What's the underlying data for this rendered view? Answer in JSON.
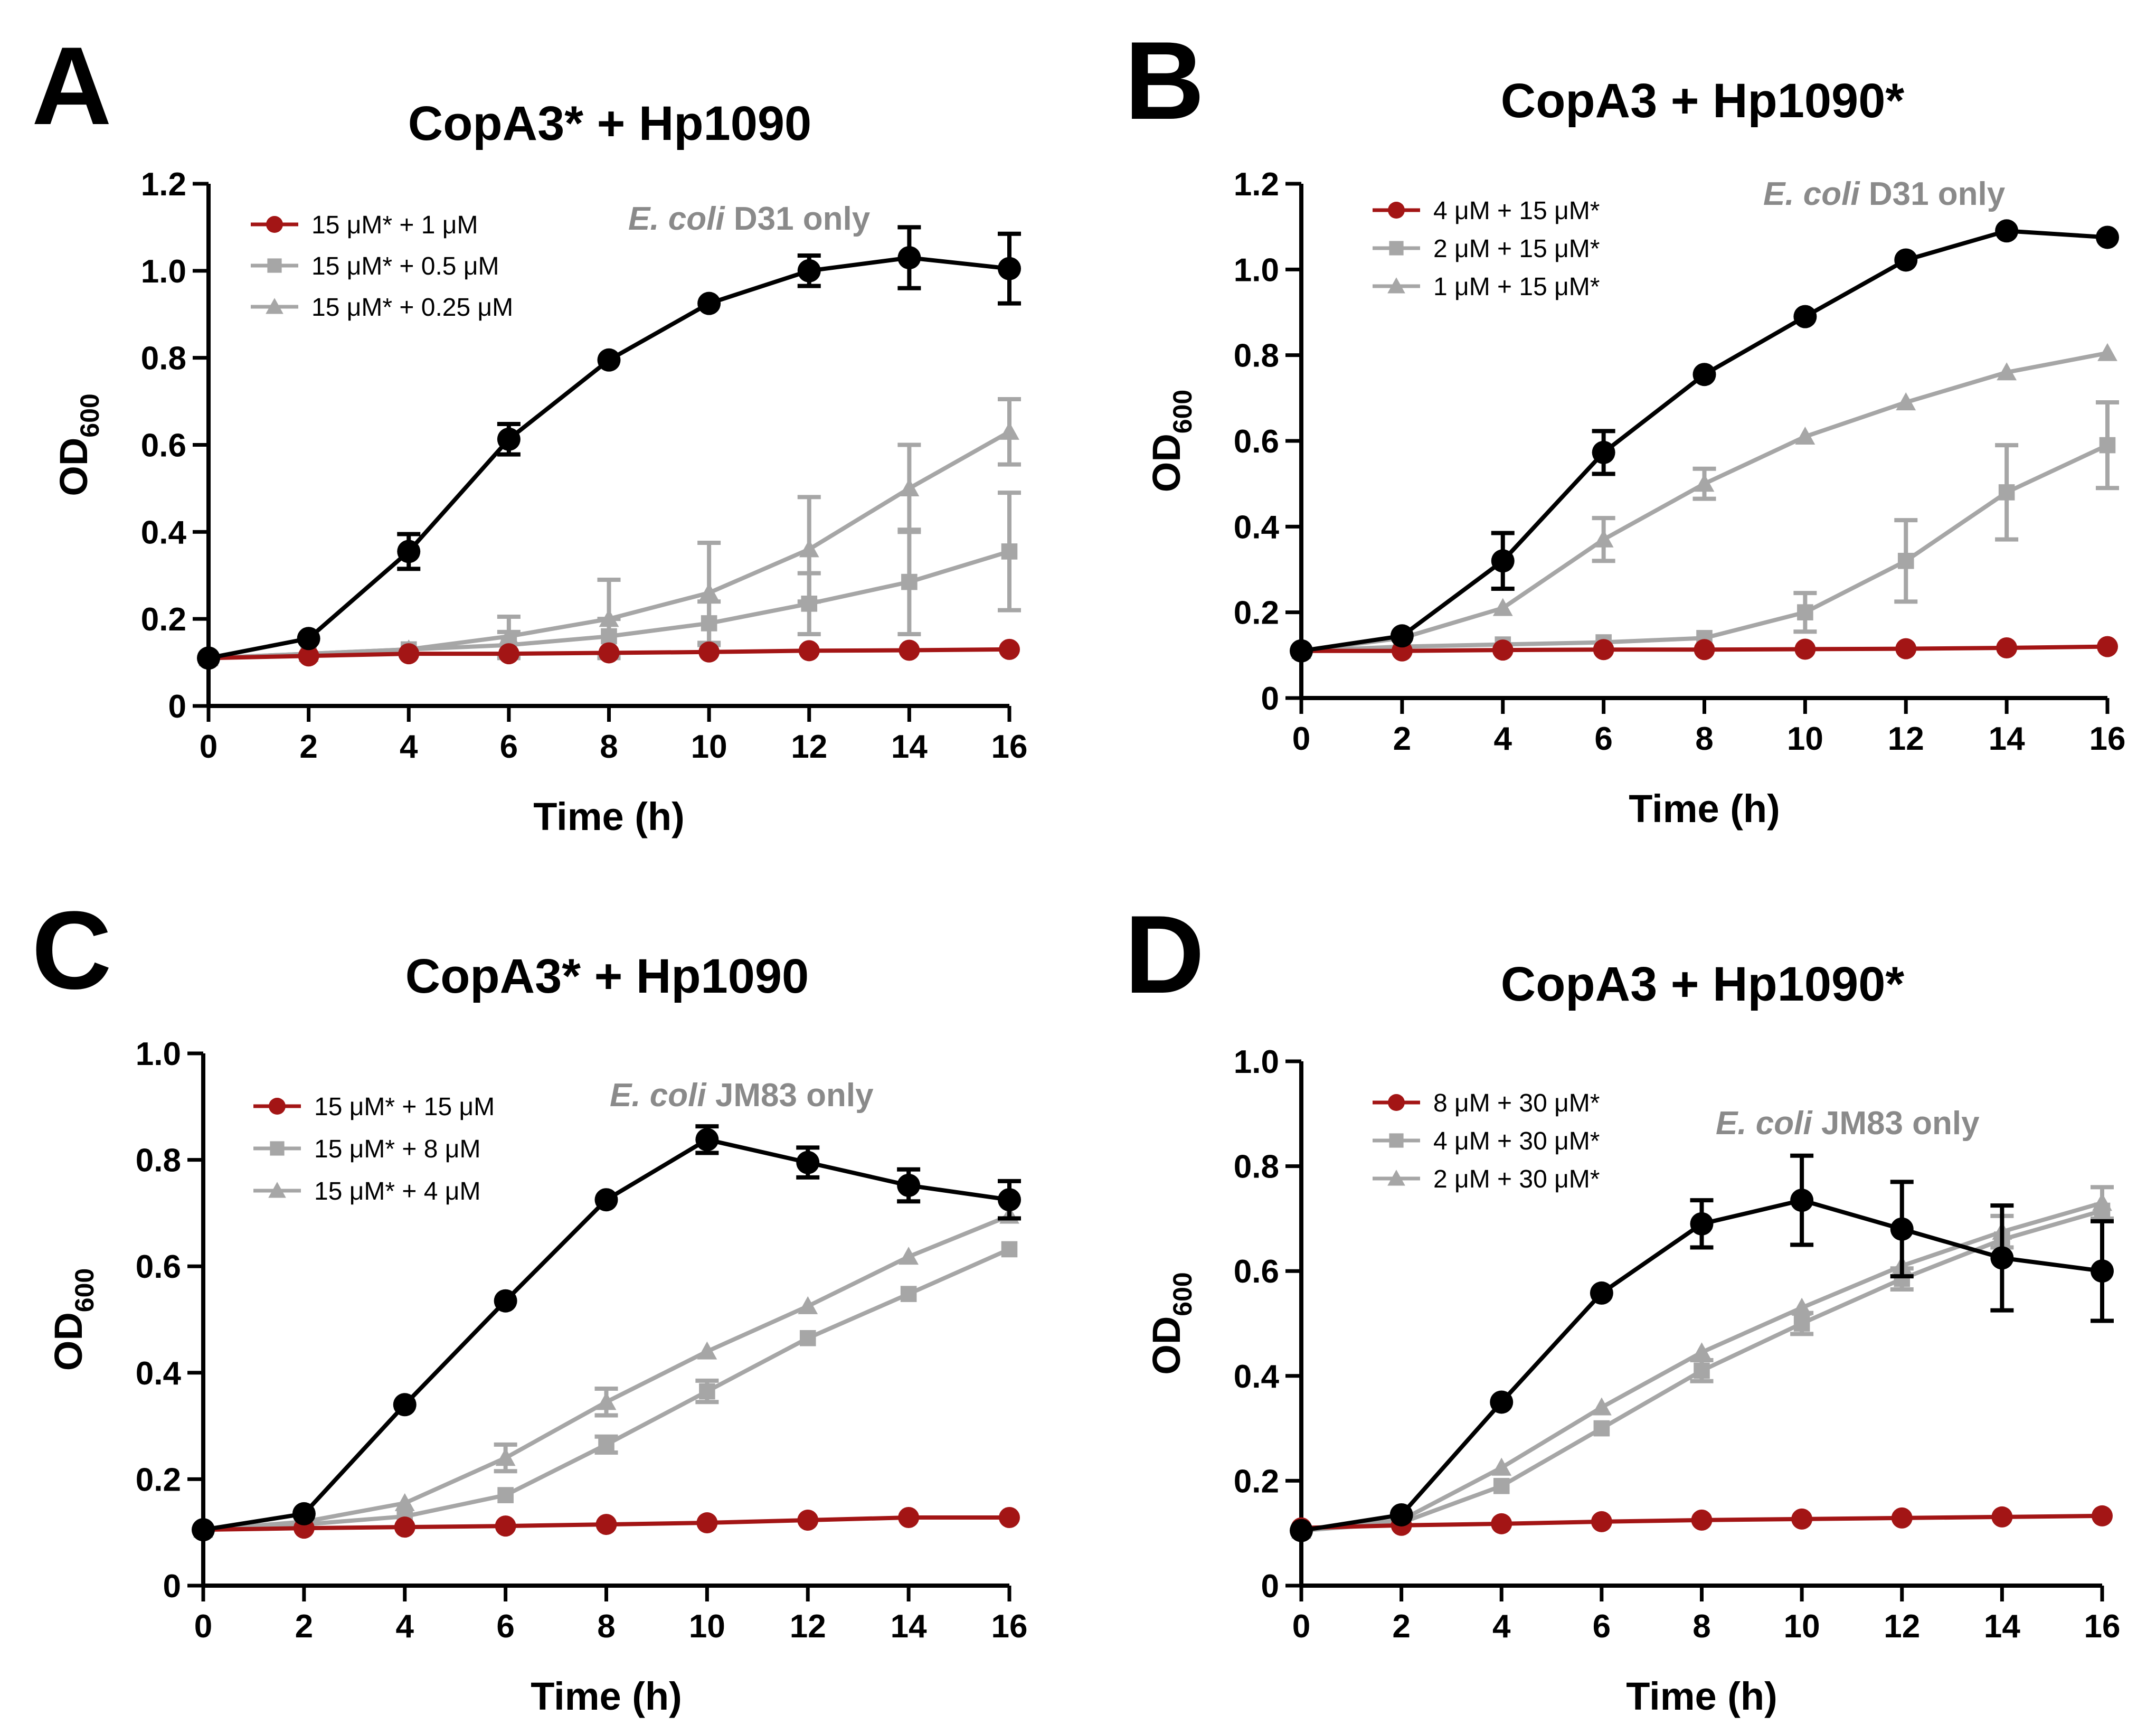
{
  "chart_data": [
    {
      "panel": "A",
      "type": "line",
      "title": "CopA3* + Hp1090",
      "xlabel": "Time (h)",
      "ylabel": "OD",
      "ylabel_sub": "600",
      "xlim": [
        0,
        16
      ],
      "ylim": [
        0,
        1.2
      ],
      "xticks": [
        "0",
        "2",
        "4",
        "6",
        "8",
        "10",
        "12",
        "14",
        "16"
      ],
      "yticks": [
        "0",
        "0.2",
        "0.4",
        "0.6",
        "0.8",
        "1.0",
        "1.2"
      ],
      "annotation": {
        "italic": "E. coli",
        "rest": " D31 only"
      },
      "x": [
        0,
        2,
        4,
        6,
        8,
        10,
        12,
        14,
        16
      ],
      "series": [
        {
          "name": "E. coli D31 only",
          "in_legend": false,
          "color": "#000000",
          "marker": "circle",
          "values": [
            0.11,
            0.155,
            0.355,
            0.613,
            0.795,
            0.925,
            1.0,
            1.03,
            1.005
          ],
          "errors": [
            0,
            0,
            0.04,
            0.035,
            0,
            0,
            0.035,
            0.07,
            0.08
          ]
        },
        {
          "name": "15 μM* + 1 μM",
          "in_legend": true,
          "color": "#a31515",
          "marker": "circle",
          "values": [
            0.11,
            0.115,
            0.12,
            0.12,
            0.122,
            0.124,
            0.127,
            0.128,
            0.13
          ],
          "errors": [
            0,
            0,
            0,
            0,
            0,
            0,
            0,
            0,
            0
          ]
        },
        {
          "name": "15 μM* + 0.5 μM",
          "in_legend": true,
          "color": "#a6a6a6",
          "marker": "square",
          "values": [
            0.11,
            0.12,
            0.13,
            0.14,
            0.16,
            0.19,
            0.235,
            0.285,
            0.355
          ],
          "errors": [
            0,
            0,
            0,
            0.03,
            0.04,
            0.05,
            0.07,
            0.12,
            0.135
          ]
        },
        {
          "name": "15 μM* + 0.25 μM",
          "in_legend": true,
          "color": "#a6a6a6",
          "marker": "triangle",
          "values": [
            0.11,
            0.12,
            0.13,
            0.16,
            0.2,
            0.26,
            0.36,
            0.5,
            0.63
          ],
          "errors": [
            0,
            0,
            0,
            0.045,
            0.09,
            0.115,
            0.12,
            0.1,
            0.075
          ]
        }
      ]
    },
    {
      "panel": "B",
      "type": "line",
      "title": "CopA3 + Hp1090*",
      "xlabel": "Time (h)",
      "ylabel": "OD",
      "ylabel_sub": "600",
      "xlim": [
        0,
        16
      ],
      "ylim": [
        0,
        1.2
      ],
      "xticks": [
        "0",
        "2",
        "4",
        "6",
        "8",
        "10",
        "12",
        "14",
        "16"
      ],
      "yticks": [
        "0",
        "0.2",
        "0.4",
        "0.6",
        "0.8",
        "1.0",
        "1.2"
      ],
      "annotation": {
        "italic": "E. coli",
        "rest": " D31 only"
      },
      "x": [
        0,
        2,
        4,
        6,
        8,
        10,
        12,
        14,
        16
      ],
      "series": [
        {
          "name": "E. coli D31 only",
          "in_legend": false,
          "color": "#000000",
          "marker": "circle",
          "values": [
            0.11,
            0.145,
            0.32,
            0.573,
            0.755,
            0.89,
            1.022,
            1.09,
            1.075
          ],
          "errors": [
            0,
            0,
            0.065,
            0.05,
            0,
            0,
            0,
            0,
            0
          ]
        },
        {
          "name": "4 μM + 15 μM*",
          "in_legend": true,
          "color": "#a31515",
          "marker": "circle",
          "values": [
            0.11,
            0.11,
            0.112,
            0.113,
            0.113,
            0.114,
            0.115,
            0.117,
            0.12
          ],
          "errors": [
            0,
            0,
            0,
            0,
            0,
            0,
            0,
            0,
            0
          ]
        },
        {
          "name": "2 μM + 15 μM*",
          "in_legend": true,
          "color": "#a6a6a6",
          "marker": "square",
          "values": [
            0.11,
            0.12,
            0.125,
            0.13,
            0.14,
            0.2,
            0.32,
            0.48,
            0.59
          ],
          "errors": [
            0,
            0,
            0,
            0,
            0,
            0.045,
            0.095,
            0.11,
            0.1
          ]
        },
        {
          "name": "1 μM + 15 μM*",
          "in_legend": true,
          "color": "#a6a6a6",
          "marker": "triangle",
          "values": [
            0.11,
            0.14,
            0.21,
            0.37,
            0.5,
            0.61,
            0.69,
            0.76,
            0.805
          ],
          "errors": [
            0,
            0,
            0,
            0.05,
            0.035,
            0,
            0,
            0,
            0
          ]
        }
      ]
    },
    {
      "panel": "C",
      "type": "line",
      "title": "CopA3* + Hp1090",
      "xlabel": "Time (h)",
      "ylabel": "OD",
      "ylabel_sub": "600",
      "xlim": [
        0,
        16
      ],
      "ylim": [
        0,
        1.0
      ],
      "xticks": [
        "0",
        "2",
        "4",
        "6",
        "8",
        "10",
        "12",
        "14",
        "16"
      ],
      "yticks": [
        "0",
        "0.2",
        "0.4",
        "0.6",
        "0.8",
        "1.0"
      ],
      "annotation": {
        "italic": "E. coli",
        "rest": " JM83 only"
      },
      "x": [
        0,
        2,
        4,
        6,
        8,
        10,
        12,
        14,
        16
      ],
      "series": [
        {
          "name": "E. coli JM83 only",
          "in_legend": false,
          "color": "#000000",
          "marker": "circle",
          "values": [
            0.105,
            0.135,
            0.34,
            0.535,
            0.725,
            0.838,
            0.795,
            0.752,
            0.725
          ],
          "errors": [
            0,
            0,
            0,
            0,
            0,
            0.025,
            0.028,
            0.03,
            0.035
          ]
        },
        {
          "name": "15 μM* + 15 μM",
          "in_legend": true,
          "color": "#a31515",
          "marker": "circle",
          "values": [
            0.105,
            0.108,
            0.11,
            0.112,
            0.115,
            0.118,
            0.123,
            0.128,
            0.128
          ],
          "errors": [
            0,
            0,
            0,
            0,
            0,
            0,
            0,
            0,
            0
          ]
        },
        {
          "name": "15 μM* + 8 μM",
          "in_legend": true,
          "color": "#a6a6a6",
          "marker": "square",
          "values": [
            0.105,
            0.115,
            0.13,
            0.17,
            0.265,
            0.365,
            0.465,
            0.548,
            0.632
          ],
          "errors": [
            0,
            0,
            0,
            0,
            0.015,
            0.02,
            0,
            0,
            0
          ]
        },
        {
          "name": "15 μM* + 4 μM",
          "in_legend": true,
          "color": "#a6a6a6",
          "marker": "triangle",
          "values": [
            0.105,
            0.12,
            0.155,
            0.24,
            0.345,
            0.44,
            0.525,
            0.618,
            0.695
          ],
          "errors": [
            0,
            0,
            0,
            0.025,
            0.025,
            0,
            0,
            0,
            0
          ]
        }
      ]
    },
    {
      "panel": "D",
      "type": "line",
      "title": "CopA3 + Hp1090*",
      "xlabel": "Time (h)",
      "ylabel": "OD",
      "ylabel_sub": "600",
      "xlim": [
        0,
        16
      ],
      "ylim": [
        0,
        1.0
      ],
      "xticks": [
        "0",
        "2",
        "4",
        "6",
        "8",
        "10",
        "12",
        "14",
        "16"
      ],
      "yticks": [
        "0",
        "0.2",
        "0.4",
        "0.6",
        "0.8",
        "1.0"
      ],
      "annotation": {
        "italic": "E. coli",
        "rest": " JM83 only"
      },
      "x": [
        0,
        2,
        4,
        6,
        8,
        10,
        12,
        14,
        16
      ],
      "series": [
        {
          "name": "E. coli JM83 only",
          "in_legend": false,
          "color": "#000000",
          "marker": "circle",
          "values": [
            0.105,
            0.135,
            0.35,
            0.558,
            0.69,
            0.735,
            0.68,
            0.625,
            0.6
          ],
          "errors": [
            0,
            0,
            0,
            0,
            0.045,
            0.085,
            0.09,
            0.1,
            0.095
          ]
        },
        {
          "name": "8 μM + 30 μM*",
          "in_legend": true,
          "color": "#a31515",
          "marker": "circle",
          "values": [
            0.11,
            0.115,
            0.118,
            0.122,
            0.125,
            0.127,
            0.129,
            0.131,
            0.133
          ],
          "errors": [
            0,
            0,
            0,
            0,
            0,
            0,
            0,
            0,
            0
          ]
        },
        {
          "name": "4 μM + 30 μM*",
          "in_legend": true,
          "color": "#a6a6a6",
          "marker": "square",
          "values": [
            0.105,
            0.12,
            0.19,
            0.3,
            0.41,
            0.5,
            0.585,
            0.66,
            0.715
          ],
          "errors": [
            0,
            0,
            0,
            0,
            0.02,
            0.02,
            0.02,
            0,
            0
          ]
        },
        {
          "name": "2 μM + 30 μM*",
          "in_legend": true,
          "color": "#a6a6a6",
          "marker": "triangle",
          "values": [
            0.105,
            0.125,
            0.225,
            0.34,
            0.445,
            0.53,
            0.61,
            0.675,
            0.73
          ],
          "errors": [
            0,
            0,
            0,
            0,
            0,
            0,
            0,
            0.03,
            0.03
          ]
        }
      ]
    }
  ]
}
